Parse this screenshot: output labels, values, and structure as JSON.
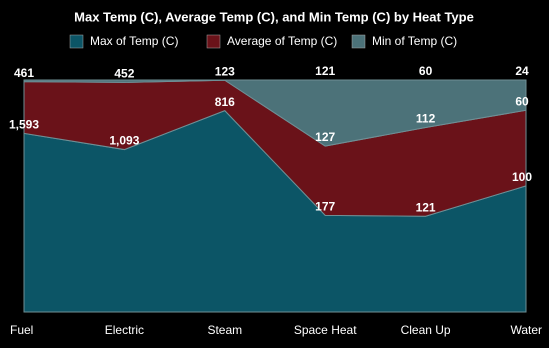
{
  "chart_data": {
    "type": "area",
    "stacking": "percent",
    "title": "Max Temp (C), Average Temp (C), and Min Temp (C) by Heat Type",
    "categories": [
      "Fuel",
      "Electric",
      "Steam",
      "Space Heat",
      "Clean Up",
      "Water"
    ],
    "series": [
      {
        "name": "Max of Temp (C)",
        "color": "#0c5566",
        "values": [
          1593,
          1093,
          816,
          177,
          121,
          100
        ],
        "value_labels": [
          "1,593",
          "1,093",
          "816",
          "177",
          "121",
          "100"
        ]
      },
      {
        "name": "Average of Temp (C)",
        "color": "#6a1219",
        "values": [
          461,
          452,
          123,
          127,
          112,
          60
        ],
        "value_labels": [
          "461",
          "452",
          "123",
          "127",
          "112",
          "60"
        ]
      },
      {
        "name": "Min of Temp (C)",
        "color": "#4c7279",
        "values": [
          15,
          16,
          1,
          121,
          60,
          24
        ],
        "value_labels": [
          null,
          null,
          null,
          "121",
          "60",
          "24"
        ]
      }
    ],
    "legend": "top"
  }
}
